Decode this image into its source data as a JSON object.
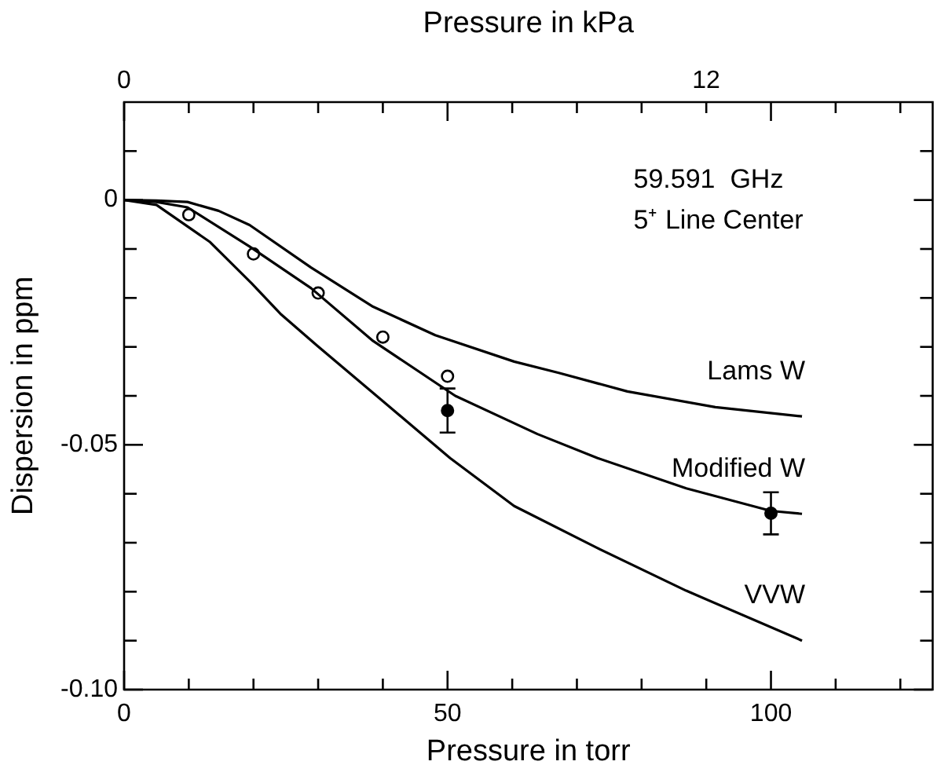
{
  "chart_data": {
    "type": "line",
    "xlabel": "Pressure in torr",
    "ylabel": "Dispersion in ppm",
    "x2label": "Pressure in kPa",
    "xlim": [
      0,
      125
    ],
    "xticks": [
      0,
      {
        "value": 10,
        "label": null
      },
      {
        "value": 20,
        "label": null
      },
      {
        "value": 30,
        "label": null
      },
      {
        "value": 40,
        "label": null
      },
      50,
      {
        "value": 60,
        "label": null
      },
      {
        "value": 70,
        "label": null
      },
      {
        "value": 80,
        "label": null
      },
      {
        "value": 90,
        "label": null
      },
      100,
      {
        "value": 110,
        "label": null
      },
      {
        "value": 120,
        "label": null
      }
    ],
    "x2lim": [
      0,
      16.67
    ],
    "x2ticks": [
      0,
      12
    ],
    "ylim": [
      -0.1,
      0.02
    ],
    "yticks": [
      {
        "value": -0.1,
        "label": "-0.10"
      },
      {
        "value": -0.09,
        "label": null
      },
      {
        "value": -0.08,
        "label": null
      },
      {
        "value": -0.07,
        "label": null
      },
      {
        "value": -0.06,
        "label": null
      },
      {
        "value": -0.05,
        "label": "-0.05"
      },
      {
        "value": -0.04,
        "label": null
      },
      {
        "value": -0.03,
        "label": null
      },
      {
        "value": -0.02,
        "label": null
      },
      {
        "value": -0.01,
        "label": null
      },
      0,
      {
        "value": 0.01,
        "label": null
      }
    ],
    "grid": false,
    "legend": false,
    "line_style": "solid",
    "annotations": [
      "59.591  GHz",
      "5⁺ Line Center"
    ],
    "series": [
      {
        "name": "Lams W",
        "type": "line",
        "marker": "none",
        "color": "#000000",
        "x": [
          0,
          5,
          9.8,
          14.6,
          19.4,
          28.9,
          38.5,
          48.1,
          60.3,
          67.2,
          77.8,
          91.4,
          104.8
        ],
        "values": [
          0,
          -0.0001,
          -0.0004,
          -0.0022,
          -0.0051,
          -0.0138,
          -0.0218,
          -0.0276,
          -0.033,
          -0.0353,
          -0.0391,
          -0.0423,
          -0.0442
        ]
      },
      {
        "name": "Modified W",
        "type": "line",
        "marker": "none",
        "color": "#000000",
        "x": [
          0,
          5,
          9.8,
          19.4,
          28.9,
          38.5,
          51.2,
          63.9,
          73.2,
          86.9,
          100,
          104.8
        ],
        "values": [
          0,
          -0.0004,
          -0.0015,
          -0.0095,
          -0.018,
          -0.0288,
          -0.04,
          -0.0478,
          -0.0527,
          -0.0589,
          -0.0635,
          -0.0641
        ]
      },
      {
        "name": "VVW",
        "type": "line",
        "marker": "none",
        "color": "#000000",
        "x": [
          0,
          5,
          13.3,
          19.7,
          24.3,
          29.9,
          50.4,
          60.3,
          73.2,
          86.9,
          104.8
        ],
        "values": [
          0,
          -0.001,
          -0.0086,
          -0.017,
          -0.0234,
          -0.0298,
          -0.0527,
          -0.0625,
          -0.0711,
          -0.0798,
          -0.09
        ]
      },
      {
        "type": "scatter",
        "marker": "circle",
        "color": "#000000",
        "x": [
          10,
          20,
          30,
          40,
          50
        ],
        "values": [
          -0.003,
          -0.011,
          -0.019,
          -0.028,
          -0.036
        ]
      },
      {
        "type": "scatter",
        "marker": "circle",
        "color": "#000000",
        "x": [
          50,
          100
        ],
        "values": [
          -0.043,
          -0.064
        ],
        "errors": [
          0.0045,
          0.0043
        ]
      }
    ]
  }
}
